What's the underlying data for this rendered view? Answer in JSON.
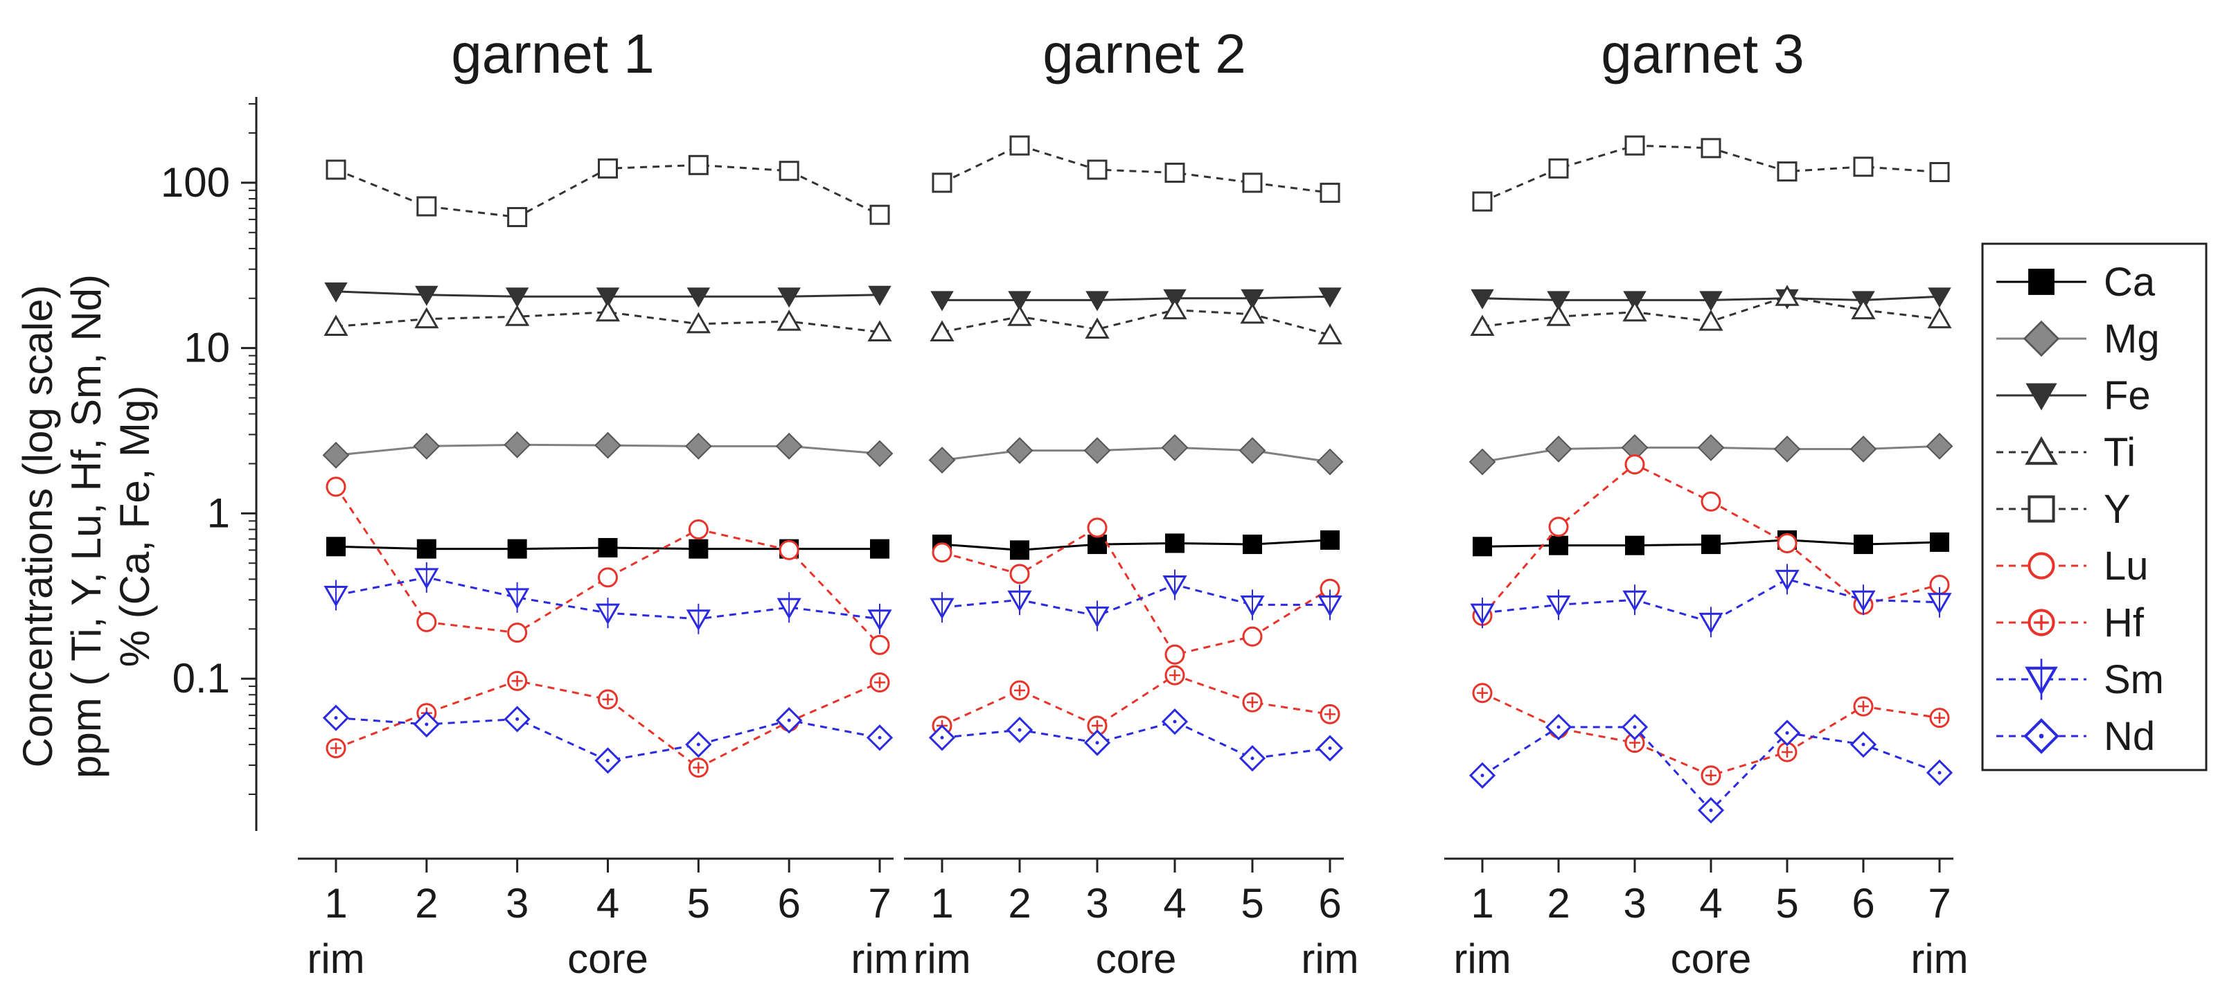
{
  "chart_data": {
    "type": "line",
    "yscale": "log",
    "ylim": [
      0.012,
      300
    ],
    "yticks": [
      {
        "value": 100,
        "label": "100"
      },
      {
        "value": 10,
        "label": "10"
      },
      {
        "value": 1,
        "label": "1"
      },
      {
        "value": 0.1,
        "label": "0.1"
      }
    ],
    "ylabel_lines": [
      "Concentrations (log scale)",
      "ppm ( Ti, Y, Lu, Hf, Sm, Nd)",
      "% (Ca, Fe, Mg)"
    ],
    "legend": [
      "Ca",
      "Mg",
      "Fe",
      "Ti",
      "Y",
      "Lu",
      "Hf",
      "Sm",
      "Nd"
    ],
    "series_styles": {
      "Ca": {
        "color": "#000000",
        "marker": "square-filled",
        "line": "solid"
      },
      "Mg": {
        "color": "#808080",
        "marker": "diamond-filled",
        "line": "solid"
      },
      "Fe": {
        "color": "#333333",
        "marker": "triangle-down-filled",
        "line": "solid"
      },
      "Ti": {
        "color": "#333333",
        "marker": "triangle-up-open",
        "line": "dashed"
      },
      "Y": {
        "color": "#333333",
        "marker": "square-open",
        "line": "dashed"
      },
      "Lu": {
        "color": "#e8332a",
        "marker": "circle-open",
        "line": "dashed"
      },
      "Hf": {
        "color": "#e8332a",
        "marker": "circle-plus",
        "line": "dashed"
      },
      "Sm": {
        "color": "#2a2ae0",
        "marker": "triangle-down-open",
        "line": "dashed"
      },
      "Nd": {
        "color": "#2a2ae0",
        "marker": "diamond-open",
        "line": "dashed"
      }
    },
    "panels": [
      {
        "title": "garnet 1",
        "x": [
          "1",
          "2",
          "3",
          "4",
          "5",
          "6",
          "7"
        ],
        "position_labels": [
          "rim",
          "core",
          "rim"
        ],
        "series": [
          {
            "name": "Ca",
            "values": [
              0.63,
              0.61,
              0.61,
              0.62,
              0.61,
              0.61,
              0.61
            ]
          },
          {
            "name": "Mg",
            "values": [
              2.25,
              2.55,
              2.6,
              2.58,
              2.55,
              2.55,
              2.3
            ]
          },
          {
            "name": "Fe",
            "values": [
              22,
              21,
              20.5,
              20.5,
              20.5,
              20.5,
              21
            ]
          },
          {
            "name": "Ti",
            "values": [
              13.5,
              15,
              15.5,
              16.5,
              14,
              14.5,
              12.5
            ]
          },
          {
            "name": "Y",
            "values": [
              120,
              72,
              62,
              122,
              128,
              118,
              64
            ]
          },
          {
            "name": "Lu",
            "values": [
              1.45,
              0.22,
              0.19,
              0.41,
              0.8,
              0.6,
              0.16
            ]
          },
          {
            "name": "Hf",
            "values": [
              0.038,
              0.062,
              0.097,
              0.075,
              0.029,
              0.055,
              0.095
            ]
          },
          {
            "name": "Sm",
            "values": [
              0.32,
              0.41,
              0.31,
              0.25,
              0.23,
              0.27,
              0.23
            ]
          },
          {
            "name": "Nd",
            "values": [
              0.058,
              0.053,
              0.057,
              0.032,
              0.04,
              0.056,
              0.044
            ]
          }
        ]
      },
      {
        "title": "garnet 2",
        "x": [
          "1",
          "2",
          "3",
          "4",
          "5",
          "6"
        ],
        "position_labels": [
          "rim",
          "core",
          "rim"
        ],
        "series": [
          {
            "name": "Ca",
            "values": [
              0.65,
              0.6,
              0.65,
              0.66,
              0.65,
              0.69
            ]
          },
          {
            "name": "Mg",
            "values": [
              2.1,
              2.4,
              2.4,
              2.5,
              2.4,
              2.05
            ]
          },
          {
            "name": "Fe",
            "values": [
              19.5,
              19.5,
              19.5,
              20,
              20,
              20.5
            ]
          },
          {
            "name": "Ti",
            "values": [
              12.5,
              15.5,
              13,
              17,
              16,
              12
            ]
          },
          {
            "name": "Y",
            "values": [
              100,
              168,
              120,
              115,
              100,
              87
            ]
          },
          {
            "name": "Lu",
            "values": [
              0.58,
              0.43,
              0.82,
              0.14,
              0.18,
              0.35
            ]
          },
          {
            "name": "Hf",
            "values": [
              0.052,
              0.085,
              0.052,
              0.105,
              0.072,
              0.061
            ]
          },
          {
            "name": "Sm",
            "values": [
              0.27,
              0.3,
              0.24,
              0.37,
              0.28,
              0.28
            ]
          },
          {
            "name": "Nd",
            "values": [
              0.044,
              0.049,
              0.041,
              0.055,
              0.033,
              0.038
            ]
          }
        ]
      },
      {
        "title": "garnet 3",
        "x": [
          "1",
          "2",
          "3",
          "4",
          "5",
          "6",
          "7"
        ],
        "position_labels": [
          "rim",
          "core",
          "rim"
        ],
        "series": [
          {
            "name": "Ca",
            "values": [
              0.63,
              0.64,
              0.64,
              0.65,
              0.69,
              0.65,
              0.67
            ]
          },
          {
            "name": "Mg",
            "values": [
              2.05,
              2.45,
              2.5,
              2.5,
              2.45,
              2.45,
              2.55
            ]
          },
          {
            "name": "Fe",
            "values": [
              20,
              19.5,
              19.5,
              19.5,
              20,
              19.5,
              20.5
            ]
          },
          {
            "name": "Ti",
            "values": [
              13.5,
              15.5,
              16.5,
              14.5,
              20.5,
              17,
              15
            ]
          },
          {
            "name": "Y",
            "values": [
              77,
              122,
              168,
              162,
              117,
              125,
              116
            ]
          },
          {
            "name": "Lu",
            "values": [
              0.24,
              0.83,
              1.98,
              1.18,
              0.66,
              0.28,
              0.37
            ]
          },
          {
            "name": "Hf",
            "values": [
              0.082,
              0.05,
              0.041,
              0.026,
              0.036,
              0.068,
              0.058
            ]
          },
          {
            "name": "Sm",
            "values": [
              0.25,
              0.28,
              0.3,
              0.22,
              0.4,
              0.3,
              0.29
            ]
          },
          {
            "name": "Nd",
            "values": [
              0.026,
              0.051,
              0.051,
              0.016,
              0.047,
              0.04,
              0.027
            ]
          }
        ]
      }
    ]
  }
}
